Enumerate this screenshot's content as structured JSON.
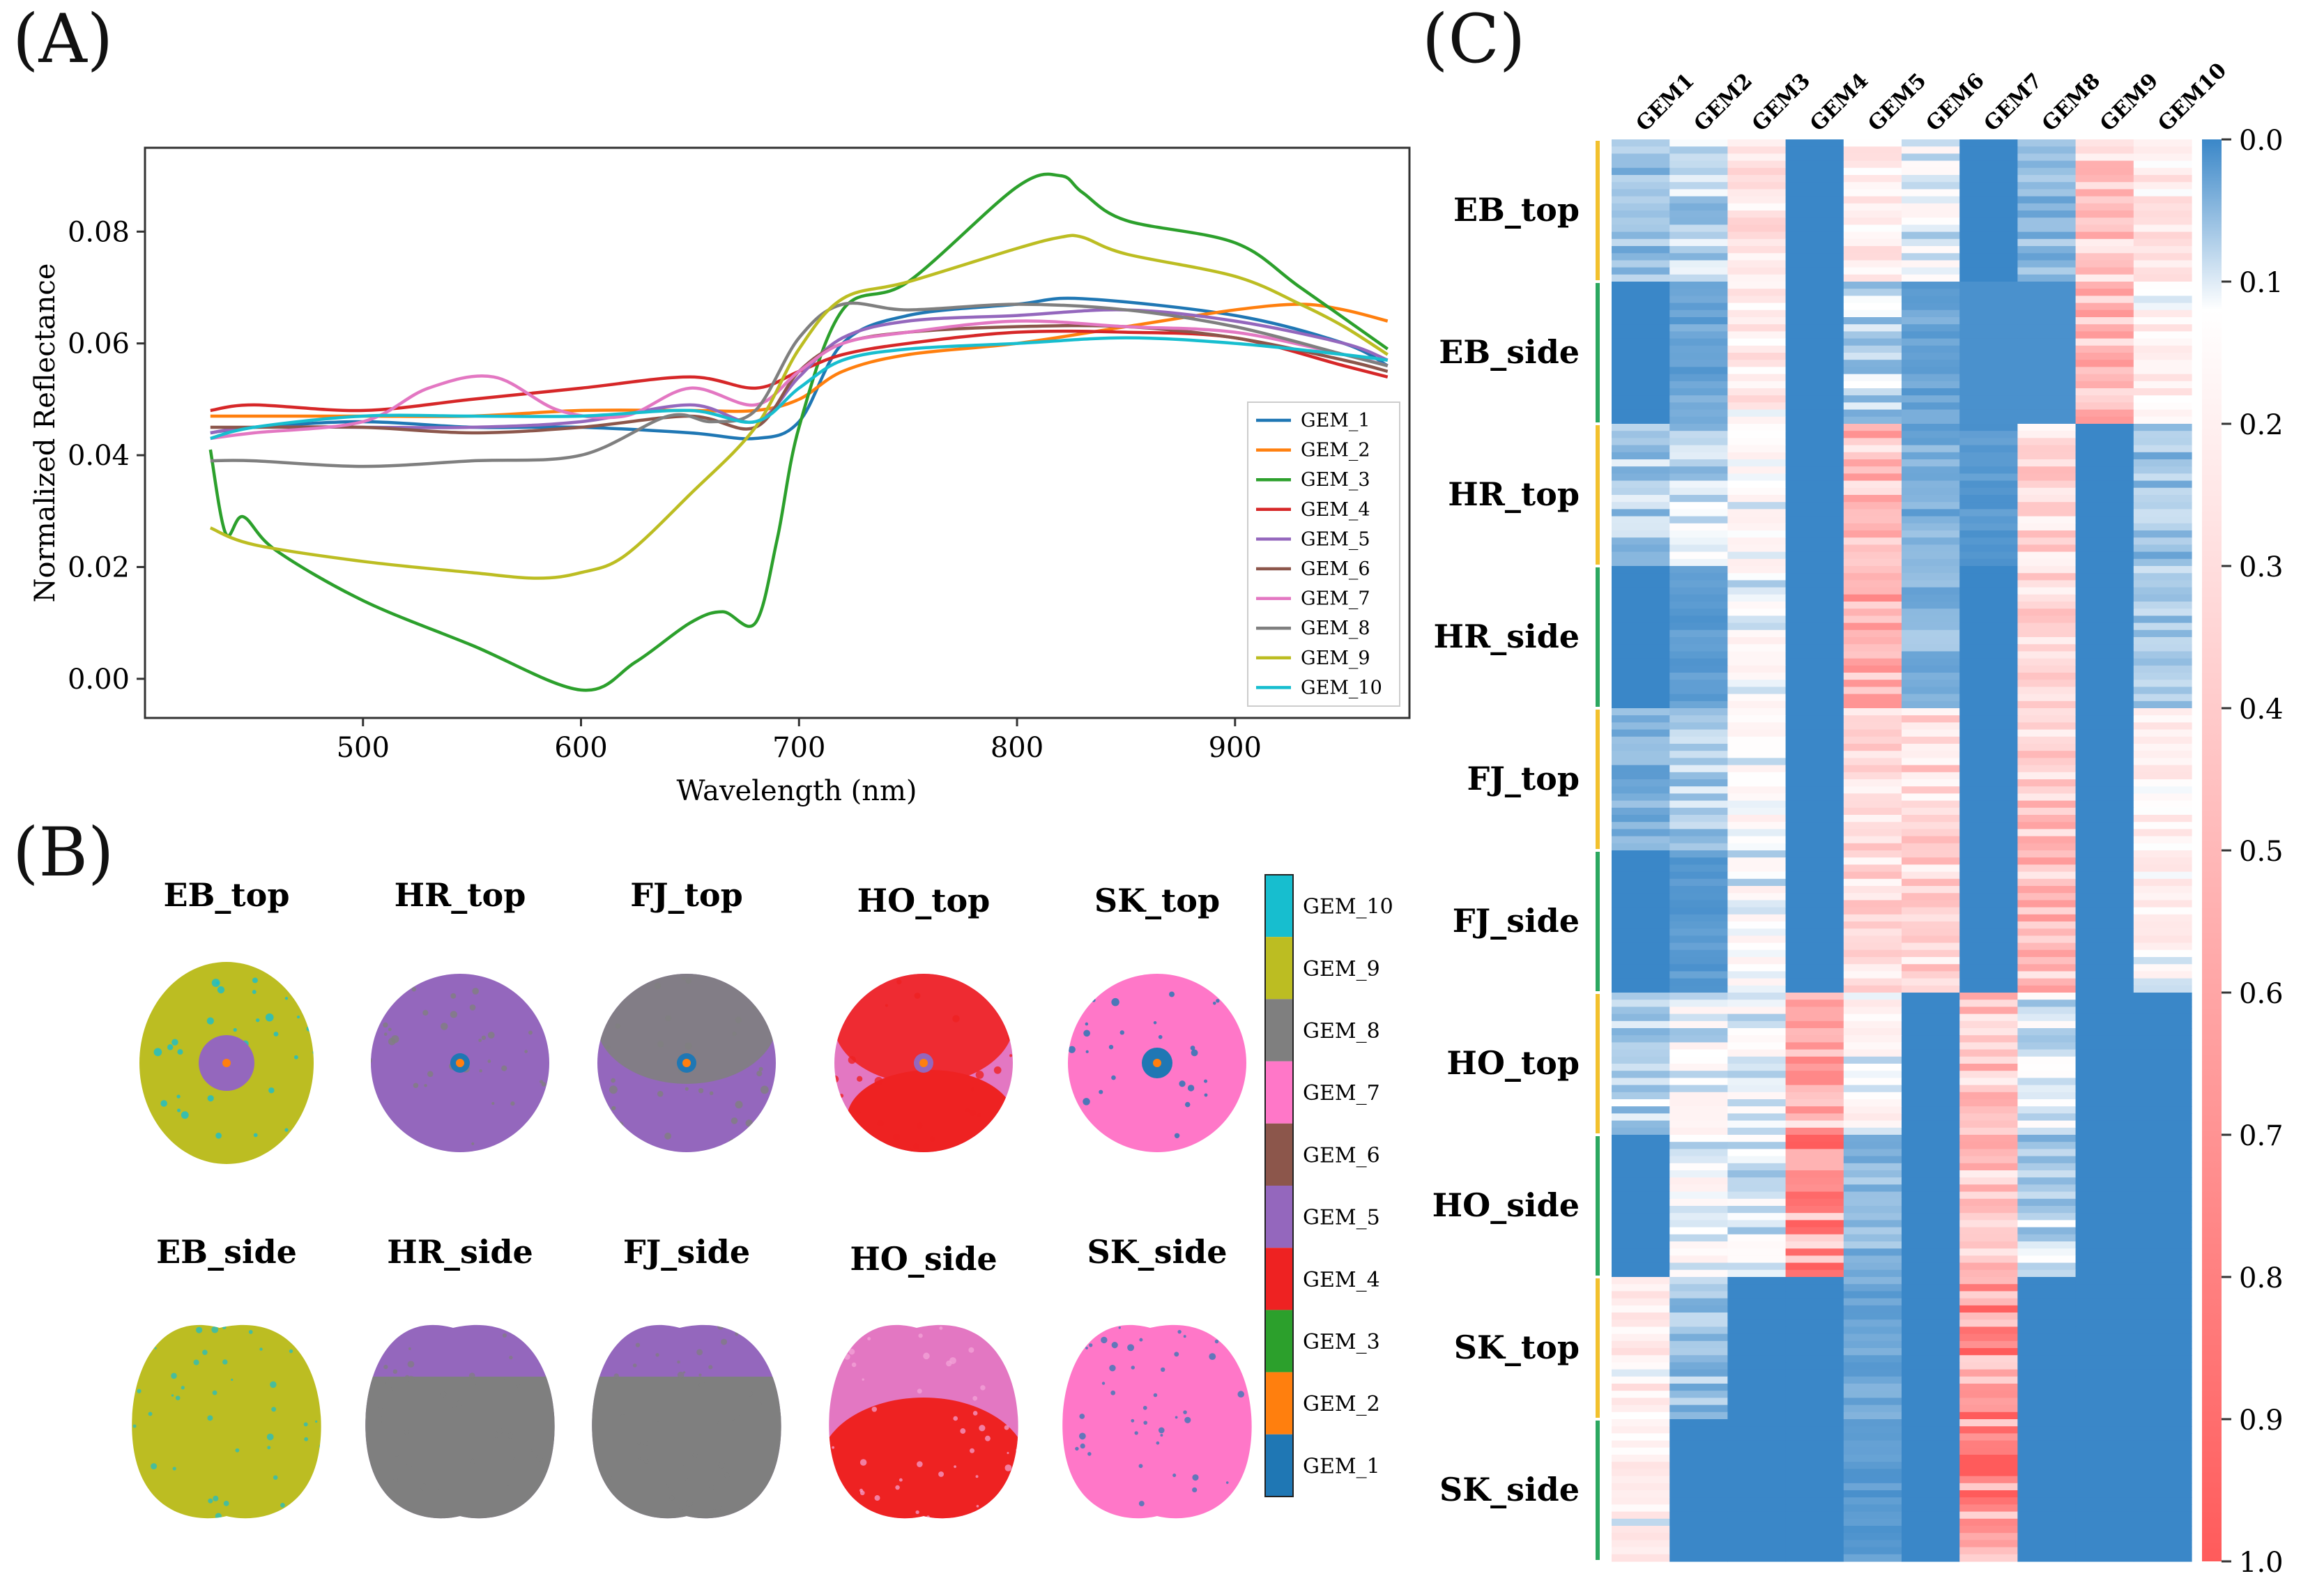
{
  "panels": {
    "a_label": "(A)",
    "b_label": "(B)",
    "c_label": "(C)"
  },
  "chart_data": [
    {
      "type": "line",
      "title": "",
      "xlabel": "Wavelength (nm)",
      "ylabel": "Normalized Reflectance",
      "xlim": [
        400,
        980
      ],
      "ylim": [
        -0.007,
        0.095
      ],
      "xticks": [
        500,
        600,
        700,
        800,
        900
      ],
      "yticks": [
        0.0,
        0.02,
        0.04,
        0.06,
        0.08
      ],
      "legend_position": "lower-right",
      "series": [
        {
          "name": "GEM_1",
          "color": "#1f77b4",
          "x": [
            430,
            450,
            500,
            550,
            600,
            650,
            680,
            700,
            720,
            750,
            800,
            830,
            900,
            950,
            970
          ],
          "y": [
            0.044,
            0.045,
            0.046,
            0.045,
            0.045,
            0.044,
            0.043,
            0.046,
            0.06,
            0.065,
            0.067,
            0.068,
            0.065,
            0.06,
            0.056
          ]
        },
        {
          "name": "GEM_2",
          "color": "#ff7f0e",
          "x": [
            430,
            450,
            500,
            550,
            600,
            650,
            680,
            700,
            720,
            750,
            800,
            850,
            900,
            930,
            950,
            970
          ],
          "y": [
            0.047,
            0.047,
            0.047,
            0.047,
            0.048,
            0.048,
            0.048,
            0.05,
            0.055,
            0.058,
            0.06,
            0.063,
            0.066,
            0.067,
            0.066,
            0.064
          ]
        },
        {
          "name": "GEM_3",
          "color": "#2ca02c",
          "x": [
            430,
            437,
            445,
            460,
            500,
            550,
            600,
            625,
            650,
            665,
            680,
            690,
            700,
            720,
            750,
            800,
            820,
            830,
            850,
            900,
            930,
            970
          ],
          "y": [
            0.041,
            0.026,
            0.029,
            0.023,
            0.014,
            0.006,
            -0.002,
            0.003,
            0.01,
            0.012,
            0.01,
            0.025,
            0.045,
            0.066,
            0.071,
            0.088,
            0.09,
            0.087,
            0.082,
            0.078,
            0.07,
            0.059
          ]
        },
        {
          "name": "GEM_4",
          "color": "#d62728",
          "x": [
            430,
            450,
            500,
            550,
            600,
            650,
            680,
            700,
            720,
            750,
            800,
            850,
            900,
            950,
            970
          ],
          "y": [
            0.048,
            0.049,
            0.048,
            0.05,
            0.052,
            0.054,
            0.052,
            0.055,
            0.058,
            0.06,
            0.062,
            0.062,
            0.061,
            0.056,
            0.054
          ]
        },
        {
          "name": "GEM_5",
          "color": "#9467bd",
          "x": [
            430,
            450,
            500,
            550,
            600,
            650,
            680,
            700,
            720,
            750,
            800,
            850,
            900,
            950,
            970
          ],
          "y": [
            0.044,
            0.045,
            0.045,
            0.045,
            0.046,
            0.049,
            0.046,
            0.054,
            0.061,
            0.064,
            0.065,
            0.066,
            0.064,
            0.06,
            0.057
          ]
        },
        {
          "name": "GEM_6",
          "color": "#8c564b",
          "x": [
            430,
            450,
            500,
            550,
            600,
            650,
            680,
            700,
            720,
            750,
            800,
            850,
            900,
            950,
            970
          ],
          "y": [
            0.045,
            0.045,
            0.045,
            0.044,
            0.045,
            0.047,
            0.045,
            0.055,
            0.06,
            0.062,
            0.063,
            0.063,
            0.061,
            0.057,
            0.055
          ]
        },
        {
          "name": "GEM_7",
          "color": "#e377c2",
          "x": [
            430,
            450,
            500,
            530,
            560,
            590,
            620,
            650,
            680,
            700,
            720,
            750,
            800,
            850,
            900,
            950,
            970
          ],
          "y": [
            0.043,
            0.044,
            0.046,
            0.052,
            0.054,
            0.048,
            0.047,
            0.052,
            0.049,
            0.055,
            0.06,
            0.062,
            0.064,
            0.063,
            0.062,
            0.058,
            0.056
          ]
        },
        {
          "name": "GEM_8",
          "color": "#7f7f7f",
          "x": [
            430,
            450,
            500,
            550,
            600,
            640,
            660,
            680,
            700,
            720,
            750,
            800,
            850,
            900,
            950,
            970
          ],
          "y": [
            0.039,
            0.039,
            0.038,
            0.039,
            0.04,
            0.047,
            0.046,
            0.048,
            0.061,
            0.067,
            0.066,
            0.067,
            0.066,
            0.063,
            0.058,
            0.056
          ]
        },
        {
          "name": "GEM_9",
          "color": "#bcbd22",
          "x": [
            430,
            450,
            500,
            550,
            580,
            600,
            620,
            650,
            680,
            700,
            720,
            750,
            800,
            820,
            830,
            850,
            900,
            930,
            950,
            970
          ],
          "y": [
            0.027,
            0.024,
            0.021,
            0.019,
            0.018,
            0.019,
            0.022,
            0.033,
            0.045,
            0.059,
            0.068,
            0.071,
            0.077,
            0.079,
            0.079,
            0.076,
            0.072,
            0.067,
            0.063,
            0.058
          ]
        },
        {
          "name": "GEM_10",
          "color": "#17becf",
          "x": [
            430,
            450,
            500,
            550,
            600,
            650,
            680,
            700,
            720,
            750,
            800,
            850,
            900,
            950,
            970
          ],
          "y": [
            0.043,
            0.045,
            0.047,
            0.047,
            0.047,
            0.048,
            0.046,
            0.052,
            0.057,
            0.059,
            0.06,
            0.061,
            0.06,
            0.058,
            0.057
          ]
        }
      ]
    },
    {
      "type": "heatmap",
      "columns": [
        "GEM1",
        "GEM2",
        "GEM3",
        "GEM4",
        "GEM5",
        "GEM6",
        "GEM7",
        "GEM8",
        "GEM9",
        "GEM10"
      ],
      "row_groups": [
        "EB_top",
        "EB_side",
        "HR_top",
        "HR_side",
        "FJ_top",
        "FJ_side",
        "HO_top",
        "HO_side",
        "SK_top",
        "SK_side"
      ],
      "rows_per_group": 20,
      "colorbar_ticks": [
        "0.0",
        "0.1",
        "0.2",
        "0.3",
        "0.4",
        "0.5",
        "0.6",
        "0.7",
        "0.8",
        "0.9",
        "1.0"
      ],
      "colormap": [
        "#3a87c8",
        "#ffffff",
        "#ff5b5b"
      ],
      "group_means": [
        [
          0.06,
          0.08,
          0.26,
          0.0,
          0.22,
          0.12,
          0.0,
          0.05,
          0.4,
          0.24
        ],
        [
          0.0,
          0.03,
          0.23,
          0.0,
          0.08,
          0.03,
          0.01,
          0.01,
          0.45,
          0.19
        ],
        [
          0.07,
          0.09,
          0.14,
          0.0,
          0.48,
          0.04,
          0.02,
          0.33,
          0.0,
          0.06
        ],
        [
          0.0,
          0.02,
          0.14,
          0.0,
          0.5,
          0.05,
          0.0,
          0.34,
          0.0,
          0.06
        ],
        [
          0.04,
          0.07,
          0.14,
          0.0,
          0.3,
          0.33,
          0.0,
          0.43,
          0.0,
          0.2
        ],
        [
          0.0,
          0.02,
          0.14,
          0.0,
          0.32,
          0.36,
          0.0,
          0.44,
          0.0,
          0.18
        ],
        [
          0.08,
          0.13,
          0.12,
          0.52,
          0.16,
          0.0,
          0.42,
          0.1,
          0.0,
          0.0
        ],
        [
          0.0,
          0.14,
          0.1,
          0.65,
          0.05,
          0.0,
          0.4,
          0.08,
          0.0,
          0.0
        ],
        [
          0.21,
          0.06,
          0.0,
          0.0,
          0.03,
          0.0,
          0.74,
          0.0,
          0.0,
          0.0
        ],
        [
          0.18,
          0.0,
          0.0,
          0.0,
          0.02,
          0.0,
          0.74,
          0.0,
          0.0,
          0.0
        ]
      ],
      "group_marker_colors": [
        "#f2c12e",
        "#2ca860",
        "#f2c12e",
        "#2ca860",
        "#f2c12e",
        "#2ca860",
        "#f2c12e",
        "#2ca860",
        "#f2c12e",
        "#2ca860"
      ]
    }
  ],
  "segmentation": {
    "top_titles": [
      "EB_top",
      "HR_top",
      "FJ_top",
      "HO_top",
      "SK_top"
    ],
    "side_titles": [
      "EB_side",
      "HR_side",
      "FJ_side",
      "HO_side",
      "SK_side"
    ],
    "fruit_colors": {
      "EB": {
        "main": "#bcbd22",
        "spot": "#17becf",
        "core": "#9467bd"
      },
      "HR": {
        "main": "#9467bd",
        "spot": "#7f7f7f",
        "core": "#1f77b4"
      },
      "FJ": {
        "main": "#9467bd",
        "spot": "#7f7f7f",
        "core": "#1f77b4"
      },
      "HO": {
        "main": "#e377c2",
        "spot": "#ee2222",
        "core": "#9467bd"
      },
      "SK": {
        "main": "#ff77c8",
        "spot": "#1f77b4",
        "core": "#1f77b4"
      }
    },
    "legend": [
      {
        "label": "GEM_10",
        "color": "#17becf"
      },
      {
        "label": "GEM_9",
        "color": "#bcbd22"
      },
      {
        "label": "GEM_8",
        "color": "#7f7f7f"
      },
      {
        "label": "GEM_7",
        "color": "#ff77c8"
      },
      {
        "label": "GEM_6",
        "color": "#8c564b"
      },
      {
        "label": "GEM_5",
        "color": "#9467bd"
      },
      {
        "label": "GEM_4",
        "color": "#ee2222"
      },
      {
        "label": "GEM_3",
        "color": "#2ca02c"
      },
      {
        "label": "GEM_2",
        "color": "#ff7f0e"
      },
      {
        "label": "GEM_1",
        "color": "#1f77b4"
      }
    ]
  }
}
